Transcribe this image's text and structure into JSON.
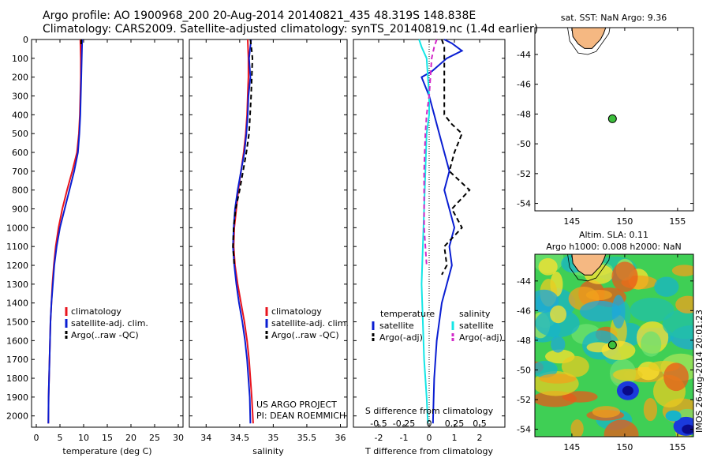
{
  "header": {
    "line1": "Argo profile: AO 1900968_200 20-Aug-2014 20140821_435 48.319S 148.838E",
    "line2": "Climatology: CARS2009. Satellite-adjusted climatology: synTS_20140819.nc (1.4d earlier)"
  },
  "colors": {
    "climatology": "#e8141e",
    "satellite": "#0a1ed2",
    "argo": "#000000",
    "sal_satellite": "#14e6e6",
    "sal_argo": "#d228c8",
    "land": "#f5b882",
    "marker": "#3cbe3c"
  },
  "chart_data": [
    {
      "type": "line",
      "panel": "temperature",
      "xlabel": "temperature (deg C)",
      "ylabel": "",
      "xlim": [
        -1,
        31
      ],
      "ylim": [
        2060,
        0
      ],
      "xticks": [
        "0",
        "5",
        "10",
        "15",
        "20",
        "25",
        "30"
      ],
      "yticks": [
        "0",
        "100",
        "200",
        "300",
        "400",
        "500",
        "600",
        "700",
        "800",
        "900",
        "1000",
        "1100",
        "1200",
        "1300",
        "1400",
        "1500",
        "1600",
        "1700",
        "1800",
        "1900",
        "2000"
      ],
      "legend": [
        "climatology",
        "satellite-adj. clim.",
        "Argo(..raw -QC)"
      ],
      "series": [
        {
          "name": "climatology",
          "x": [
            9.3,
            9.4,
            9.4,
            9.3,
            9.2,
            9.0,
            8.6,
            7.6,
            6.5,
            5.5,
            4.7,
            4.1,
            3.7,
            3.4,
            3.2,
            3.0,
            2.9,
            2.8,
            2.7,
            2.6,
            2.55
          ],
          "y": [
            0,
            100,
            200,
            300,
            400,
            500,
            600,
            700,
            800,
            900,
            1000,
            1100,
            1200,
            1300,
            1400,
            1500,
            1600,
            1700,
            1800,
            1900,
            2040
          ]
        },
        {
          "name": "satellite-adj. clim.",
          "x": [
            9.7,
            9.6,
            9.5,
            9.4,
            9.3,
            9.1,
            8.8,
            8.0,
            7.0,
            6.0,
            5.0,
            4.3,
            3.8,
            3.5,
            3.2,
            3.0,
            2.9,
            2.8,
            2.7,
            2.6,
            2.55
          ],
          "y": [
            0,
            100,
            200,
            300,
            400,
            500,
            600,
            700,
            800,
            900,
            1000,
            1100,
            1200,
            1300,
            1400,
            1500,
            1600,
            1700,
            1800,
            1900,
            2040
          ]
        },
        {
          "name": "Argo(..raw -QC)",
          "x": [
            9.5,
            9.5,
            9.5
          ],
          "y": [
            0,
            20,
            40
          ]
        }
      ]
    },
    {
      "type": "line",
      "panel": "salinity",
      "xlabel": "salinity",
      "ylabel": "",
      "xlim": [
        33.75,
        36.1
      ],
      "ylim": [
        2060,
        0
      ],
      "xticks": [
        "34",
        "34.5",
        "35",
        "35.5",
        "36"
      ],
      "legend": [
        "climatology",
        "satellite-adj. clim.",
        "Argo(..raw -QC)"
      ],
      "series": [
        {
          "name": "climatology",
          "x": [
            34.62,
            34.63,
            34.63,
            34.62,
            34.61,
            34.59,
            34.56,
            34.52,
            34.48,
            34.45,
            34.42,
            34.41,
            34.43,
            34.47,
            34.52,
            34.57,
            34.61,
            34.64,
            34.66,
            34.68,
            34.7
          ],
          "y": [
            0,
            100,
            200,
            300,
            400,
            500,
            600,
            700,
            800,
            900,
            1000,
            1100,
            1200,
            1300,
            1400,
            1500,
            1600,
            1700,
            1800,
            1900,
            2040
          ]
        },
        {
          "name": "satellite-adj. clim.",
          "x": [
            34.67,
            34.64,
            34.66,
            34.63,
            34.62,
            34.6,
            34.57,
            34.52,
            34.47,
            34.43,
            34.41,
            34.4,
            34.42,
            34.45,
            34.49,
            34.54,
            34.58,
            34.61,
            34.63,
            34.65,
            34.66
          ],
          "y": [
            0,
            100,
            200,
            300,
            400,
            500,
            600,
            700,
            800,
            900,
            1000,
            1100,
            1200,
            1300,
            1400,
            1500,
            1600,
            1700,
            1800,
            1900,
            2040
          ]
        },
        {
          "name": "Argo(..raw -QC)",
          "x": [
            34.66,
            34.67,
            34.68,
            34.69,
            34.67,
            34.64,
            34.6,
            34.55,
            34.5,
            34.44,
            34.41,
            34.4,
            34.42
          ],
          "y": [
            0,
            30,
            60,
            100,
            300,
            500,
            600,
            700,
            800,
            900,
            1000,
            1100,
            1200
          ]
        }
      ],
      "annotations": [
        "US ARGO PROJECT",
        "PI: DEAN ROEMMICH"
      ]
    },
    {
      "type": "line",
      "panel": "difference",
      "xlabel": "T difference from climatology",
      "xlabel2": "S difference from climatology",
      "xlim": [
        -3,
        3
      ],
      "xticks": [
        "-2",
        "-1",
        "0",
        "1",
        "2"
      ],
      "xticks2": [
        "-0.5",
        "-0.25",
        "0",
        "0.25",
        "0.5"
      ],
      "legend_headers": [
        "temperature",
        "salinity"
      ],
      "legend": [
        "satellite",
        "Argo(-adj)",
        "satellite",
        "Argo(-adj)"
      ],
      "series": [
        {
          "name": "satellite",
          "x": [
            0.6,
            0.9,
            1.3,
            0.7,
            0.1,
            -0.3,
            0.0,
            0.2,
            0.4,
            0.6,
            0.8,
            0.6,
            0.8,
            1.0,
            0.8,
            0.9,
            0.7,
            0.5,
            0.4,
            0.3,
            0.2,
            0.15
          ],
          "y": [
            0,
            20,
            60,
            100,
            170,
            200,
            300,
            400,
            500,
            600,
            700,
            800,
            900,
            1000,
            1100,
            1200,
            1300,
            1400,
            1500,
            1600,
            1800,
            2040
          ]
        },
        {
          "name": "Argo(-adj)",
          "x": [
            0.5,
            0.6,
            0.6,
            0.9,
            1.3,
            1.0,
            0.8,
            1.6,
            0.9,
            1.3,
            0.6,
            0.7,
            0.5
          ],
          "y": [
            0,
            40,
            400,
            450,
            500,
            600,
            700,
            800,
            900,
            1000,
            1100,
            1200,
            1250
          ]
        },
        {
          "name": "sal satellite",
          "x": [
            -0.4,
            -0.3,
            -0.1,
            -0.05,
            0.0,
            0.0,
            -0.1,
            -0.15,
            -0.2,
            -0.25,
            -0.3,
            -0.25,
            -0.2,
            -0.15,
            -0.1,
            -0.05
          ],
          "y": [
            0,
            40,
            100,
            200,
            300,
            400,
            500,
            700,
            900,
            1100,
            1300,
            1500,
            1700,
            1800,
            1900,
            2040
          ]
        },
        {
          "name": "sal Argo(-adj)",
          "x": [
            0.3,
            0.2,
            0.1,
            0.0,
            -0.1,
            -0.15,
            -0.2,
            -0.2,
            -0.2,
            -0.15,
            -0.1
          ],
          "y": [
            0,
            40,
            100,
            300,
            400,
            500,
            700,
            900,
            1000,
            1100,
            1200
          ]
        }
      ]
    },
    {
      "type": "scatter",
      "panel": "sst_map",
      "title": "sat. SST: NaN Argo: 9.36",
      "xlim": [
        141.5,
        156.5
      ],
      "ylim": [
        -54.5,
        -42.2
      ],
      "xticks": [
        "145",
        "150",
        "155"
      ],
      "yticks": [
        "-44",
        "-46",
        "-48",
        "-50",
        "-52",
        "-54"
      ],
      "points": [
        {
          "x": 148.838,
          "y": -48.319
        }
      ]
    },
    {
      "type": "heatmap",
      "panel": "sla_map",
      "title": "Altim. SLA: 0.11",
      "subtitle": "Argo h1000: 0.008 h2000: NaN",
      "xlim": [
        141.5,
        156.5
      ],
      "ylim": [
        -54.5,
        -42.2
      ],
      "xticks": [
        "145",
        "150",
        "155"
      ],
      "yticks": [
        "-44",
        "-46",
        "-48",
        "-50",
        "-52",
        "-54"
      ],
      "points": [
        {
          "x": 148.838,
          "y": -48.319
        }
      ]
    }
  ],
  "watermark": "IMOS 26-Aug-2014 20:01:23"
}
